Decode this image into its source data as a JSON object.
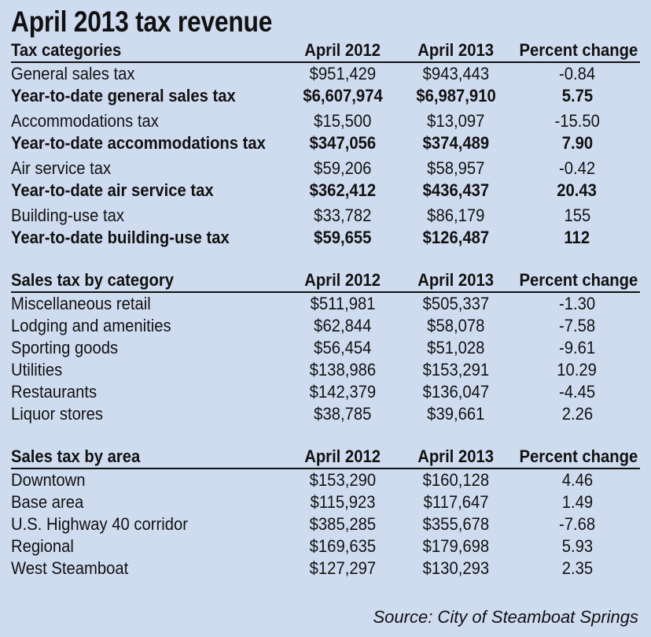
{
  "title": "April 2013 tax revenue",
  "source": "Source: City of Steamboat Springs",
  "sections": [
    {
      "headers": [
        "Tax categories",
        "April 2012",
        "April 2013",
        "Percent change"
      ],
      "rows": [
        {
          "bold": false,
          "gap": false,
          "cells": [
            "General sales tax",
            "$951,429",
            "$943,443",
            "-0.84"
          ]
        },
        {
          "bold": true,
          "gap": false,
          "cells": [
            "Year-to-date general sales tax",
            "$6,607,974",
            "$6,987,910",
            "5.75"
          ]
        },
        {
          "bold": false,
          "gap": true,
          "cells": [
            "Accommodations tax",
            "$15,500",
            "$13,097",
            "-15.50"
          ]
        },
        {
          "bold": true,
          "gap": false,
          "cells": [
            "Year-to-date accommodations tax",
            "$347,056",
            "$374,489",
            "7.90"
          ]
        },
        {
          "bold": false,
          "gap": true,
          "cells": [
            "Air service tax",
            "$59,206",
            "$58,957",
            "-0.42"
          ]
        },
        {
          "bold": true,
          "gap": false,
          "cells": [
            "Year-to-date air service tax",
            "$362,412",
            "$436,437",
            "20.43"
          ]
        },
        {
          "bold": false,
          "gap": true,
          "cells": [
            "Building-use tax",
            "$33,782",
            "$86,179",
            "155"
          ]
        },
        {
          "bold": true,
          "gap": false,
          "cells": [
            "Year-to-date building-use tax",
            "$59,655",
            "$126,487",
            "112"
          ]
        }
      ]
    },
    {
      "headers": [
        "Sales tax by category",
        "April 2012",
        "April 2013",
        "Percent change"
      ],
      "rows": [
        {
          "bold": false,
          "gap": false,
          "cells": [
            "Miscellaneous retail",
            "$511,981",
            "$505,337",
            "-1.30"
          ]
        },
        {
          "bold": false,
          "gap": false,
          "cells": [
            "Lodging and amenities",
            "$62,844",
            "$58,078",
            "-7.58"
          ]
        },
        {
          "bold": false,
          "gap": false,
          "cells": [
            "Sporting goods",
            "$56,454",
            "$51,028",
            "-9.61"
          ]
        },
        {
          "bold": false,
          "gap": false,
          "cells": [
            "Utilities",
            "$138,986",
            "$153,291",
            "10.29"
          ]
        },
        {
          "bold": false,
          "gap": false,
          "cells": [
            "Restaurants",
            "$142,379",
            "$136,047",
            "-4.45"
          ]
        },
        {
          "bold": false,
          "gap": false,
          "cells": [
            "Liquor stores",
            "$38,785",
            "$39,661",
            "2.26"
          ]
        }
      ]
    },
    {
      "headers": [
        "Sales tax by area",
        "April 2012",
        "April 2013",
        "Percent change"
      ],
      "rows": [
        {
          "bold": false,
          "gap": false,
          "cells": [
            "Downtown",
            "$153,290",
            "$160,128",
            "4.46"
          ]
        },
        {
          "bold": false,
          "gap": false,
          "cells": [
            "Base area",
            "$115,923",
            "$117,647",
            "1.49"
          ]
        },
        {
          "bold": false,
          "gap": false,
          "cells": [
            "U.S. Highway 40 corridor",
            "$385,285",
            "$355,678",
            "-7.68"
          ]
        },
        {
          "bold": false,
          "gap": false,
          "cells": [
            "Regional",
            "$169,635",
            "$179,698",
            "5.93"
          ]
        },
        {
          "bold": false,
          "gap": false,
          "cells": [
            "West Steamboat",
            "$127,297",
            "$130,293",
            "2.35"
          ]
        }
      ]
    }
  ]
}
